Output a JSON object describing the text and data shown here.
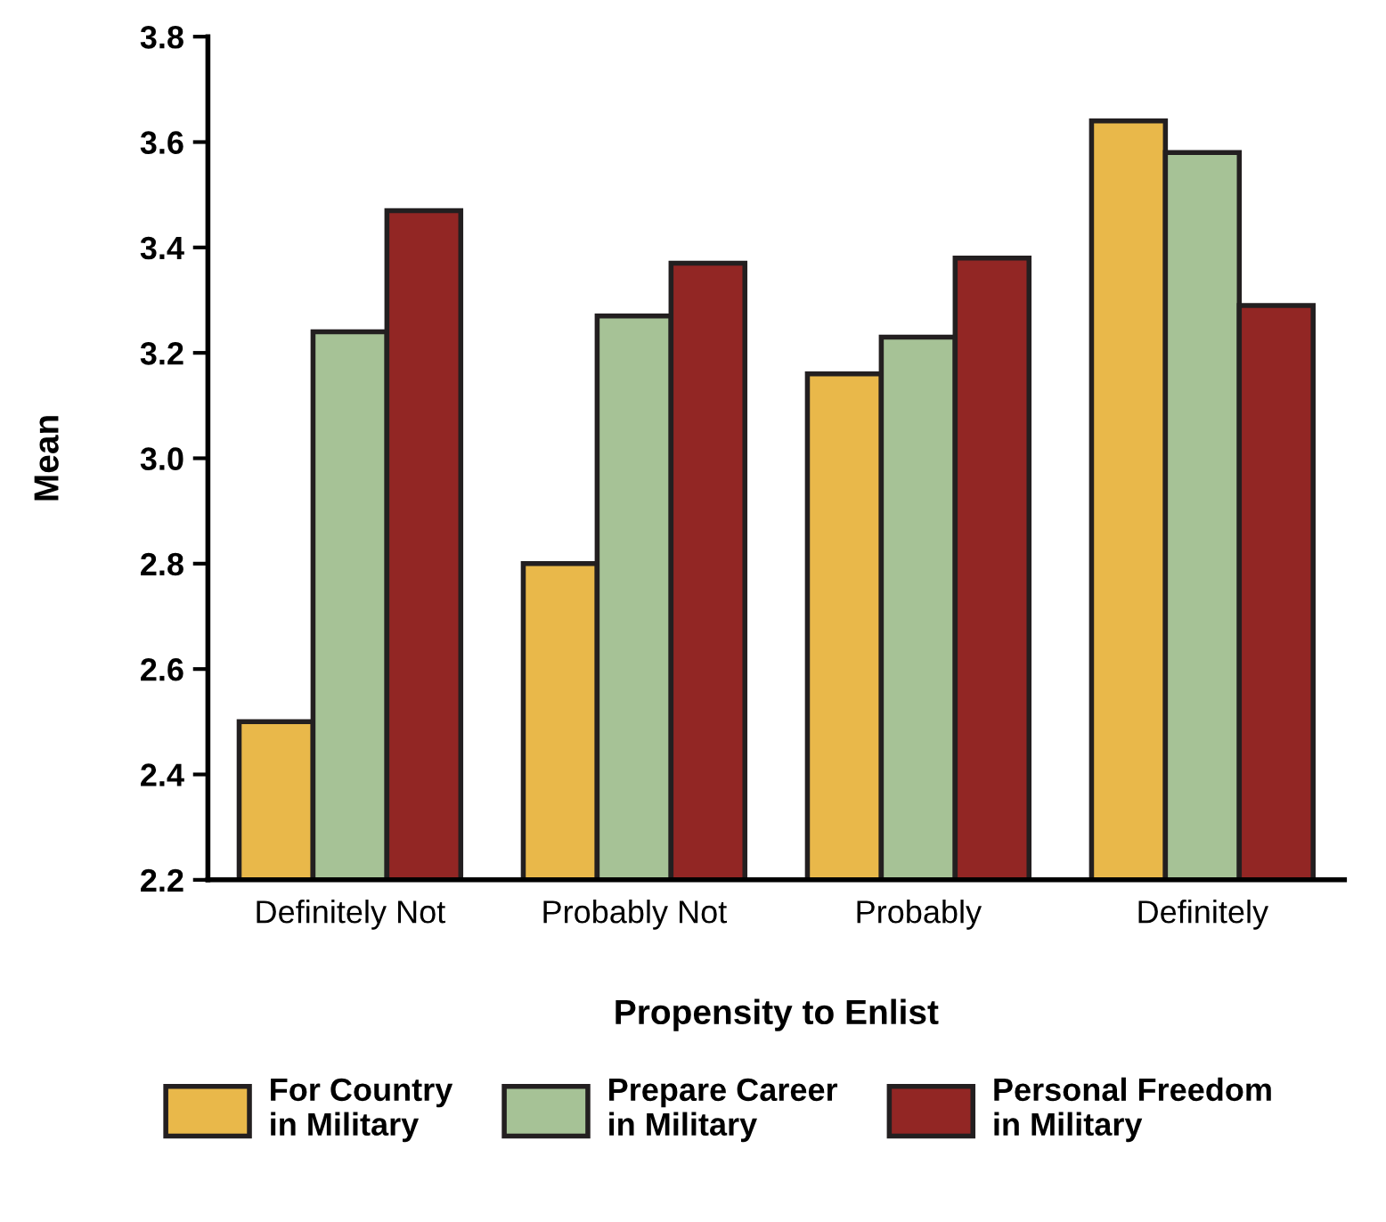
{
  "chart_data": {
    "type": "bar",
    "xlabel": "Propensity to Enlist",
    "ylabel": "Mean",
    "categories": [
      "Definitely Not",
      "Probably Not",
      "Probably",
      "Definitely"
    ],
    "series": [
      {
        "name": "For Country\nin Military",
        "color": "#e9b84a",
        "values": [
          2.5,
          2.8,
          3.16,
          3.64
        ]
      },
      {
        "name": "Prepare Career\nin Military",
        "color": "#a6c296",
        "values": [
          3.24,
          3.27,
          3.23,
          3.58
        ]
      },
      {
        "name": "Personal Freedom\nin Military",
        "color": "#922624",
        "values": [
          3.47,
          3.37,
          3.38,
          3.29
        ]
      }
    ],
    "ylim": [
      2.2,
      3.8
    ],
    "yticks": [
      2.2,
      2.4,
      2.6,
      2.8,
      {
        "value": 3,
        "label": "3.0"
      },
      3.2,
      3.4,
      3.6,
      3.8
    ],
    "grid": false,
    "legend": "bottom"
  }
}
